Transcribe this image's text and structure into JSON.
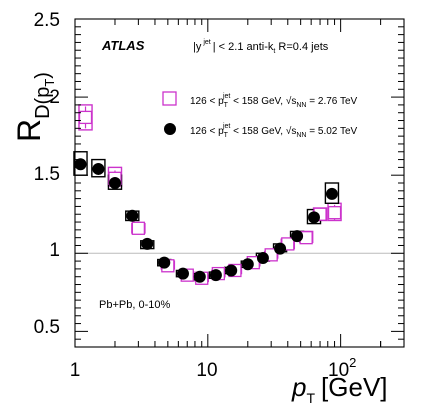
{
  "chart_data": {
    "type": "scatter",
    "x_scale": "log",
    "xlim": [
      1,
      300
    ],
    "ylim": [
      0.4,
      2.5
    ],
    "reference_line_y": 1,
    "x_ticks": [
      1,
      10,
      100
    ],
    "x_tick_labels": [
      "1",
      "10",
      "10",
      "2"
    ],
    "y_ticks": [
      0.5,
      1,
      1.5,
      2,
      2.5
    ],
    "y_tick_labels": [
      "0.5",
      "1",
      "1.5",
      "2",
      "2.5"
    ],
    "ylabel": "R",
    "ylabel_sub": "D(p",
    "ylabel_sub2": "T",
    "ylabel_close": ")",
    "xlabel": "p",
    "xlabel_sub": "T",
    "xlabel_unit": "[GeV]",
    "experiment": "ATLAS",
    "selection_text": {
      "a": "|y",
      "a_sup": "jet",
      "b": "| < 2.1 anti-k",
      "b_sub": "t",
      "c": " R=0.4 jets"
    },
    "centrality_text": "Pb+Pb, 0-10%",
    "series": [
      {
        "legend": {
          "a": "126 <  p",
          "a_sub": "T",
          "a_sup": "jet",
          "b": " < 158 GeV, ",
          "c": "√s",
          "c_sub": "NN",
          "d": " = 2.76 TeV"
        },
        "color": "#cc33cc",
        "marker": "open-square",
        "points": [
          {
            "x": 1.2,
            "y": 1.87,
            "err": 0.07,
            "box_lo": 1.79,
            "box_hi": 1.95
          },
          {
            "x": 2.0,
            "y": 1.48,
            "err": 0.05,
            "box_lo": 1.43,
            "box_hi": 1.55
          },
          {
            "x": 3.0,
            "y": 1.16,
            "err": 0.03,
            "box_lo": 1.13,
            "box_hi": 1.19
          },
          {
            "x": 5.0,
            "y": 0.92,
            "err": 0.02,
            "box_lo": 0.9,
            "box_hi": 0.95
          },
          {
            "x": 7.0,
            "y": 0.86,
            "err": 0.02,
            "box_lo": 0.84,
            "box_hi": 0.88
          },
          {
            "x": 9.0,
            "y": 0.84,
            "err": 0.02,
            "box_lo": 0.82,
            "box_hi": 0.86
          },
          {
            "x": 12.0,
            "y": 0.87,
            "err": 0.02,
            "box_lo": 0.85,
            "box_hi": 0.89
          },
          {
            "x": 16.0,
            "y": 0.89,
            "err": 0.02,
            "box_lo": 0.87,
            "box_hi": 0.91
          },
          {
            "x": 22.0,
            "y": 0.94,
            "err": 0.02,
            "box_lo": 0.92,
            "box_hi": 0.96
          },
          {
            "x": 30.0,
            "y": 0.99,
            "err": 0.02,
            "box_lo": 0.97,
            "box_hi": 1.01
          },
          {
            "x": 40.0,
            "y": 1.06,
            "err": 0.03,
            "box_lo": 1.03,
            "box_hi": 1.09
          },
          {
            "x": 55.0,
            "y": 1.1,
            "err": 0.03,
            "box_lo": 1.07,
            "box_hi": 1.14
          },
          {
            "x": 70.0,
            "y": 1.25,
            "err": 0.04,
            "box_lo": 1.21,
            "box_hi": 1.29
          },
          {
            "x": 90.0,
            "y": 1.26,
            "err": 0.05,
            "box_lo": 1.21,
            "box_hi": 1.32
          }
        ]
      },
      {
        "legend": {
          "a": "126 <  p",
          "a_sub": "T",
          "a_sup": "jet",
          "b": " < 158 GeV, ",
          "c": "√s",
          "c_sub": "NN",
          "d": " = 5.02 TeV"
        },
        "color": "#000000",
        "marker": "filled-circle",
        "points": [
          {
            "x": 1.1,
            "y": 1.57,
            "err": 0.03,
            "box_lo": 1.5,
            "box_hi": 1.65
          },
          {
            "x": 1.5,
            "y": 1.54,
            "err": 0.03,
            "box_lo": 1.49,
            "box_hi": 1.6
          },
          {
            "x": 2.0,
            "y": 1.45,
            "err": 0.03,
            "box_lo": 1.41,
            "box_hi": 1.5
          },
          {
            "x": 2.7,
            "y": 1.24,
            "err": 0.02,
            "box_lo": 1.21,
            "box_hi": 1.27
          },
          {
            "x": 3.5,
            "y": 1.06,
            "err": 0.02,
            "box_lo": 1.03,
            "box_hi": 1.08
          },
          {
            "x": 4.7,
            "y": 0.94,
            "err": 0.02,
            "box_lo": 0.92,
            "box_hi": 0.96
          },
          {
            "x": 6.5,
            "y": 0.87,
            "err": 0.01,
            "box_lo": 0.85,
            "box_hi": 0.89
          },
          {
            "x": 8.7,
            "y": 0.85,
            "err": 0.01,
            "box_lo": 0.83,
            "box_hi": 0.87
          },
          {
            "x": 11.5,
            "y": 0.86,
            "err": 0.01,
            "box_lo": 0.84,
            "box_hi": 0.88
          },
          {
            "x": 15.0,
            "y": 0.89,
            "err": 0.01,
            "box_lo": 0.87,
            "box_hi": 0.91
          },
          {
            "x": 20.0,
            "y": 0.93,
            "err": 0.01,
            "box_lo": 0.91,
            "box_hi": 0.95
          },
          {
            "x": 26.0,
            "y": 0.97,
            "err": 0.01,
            "box_lo": 0.95,
            "box_hi": 1.0
          },
          {
            "x": 35.0,
            "y": 1.03,
            "err": 0.02,
            "box_lo": 1.01,
            "box_hi": 1.06
          },
          {
            "x": 47.0,
            "y": 1.11,
            "err": 0.02,
            "box_lo": 1.08,
            "box_hi": 1.14
          },
          {
            "x": 63.0,
            "y": 1.23,
            "err": 0.02,
            "box_lo": 1.19,
            "box_hi": 1.28
          },
          {
            "x": 86.0,
            "y": 1.38,
            "err": 0.03,
            "box_lo": 1.32,
            "box_hi": 1.45
          }
        ]
      }
    ]
  }
}
